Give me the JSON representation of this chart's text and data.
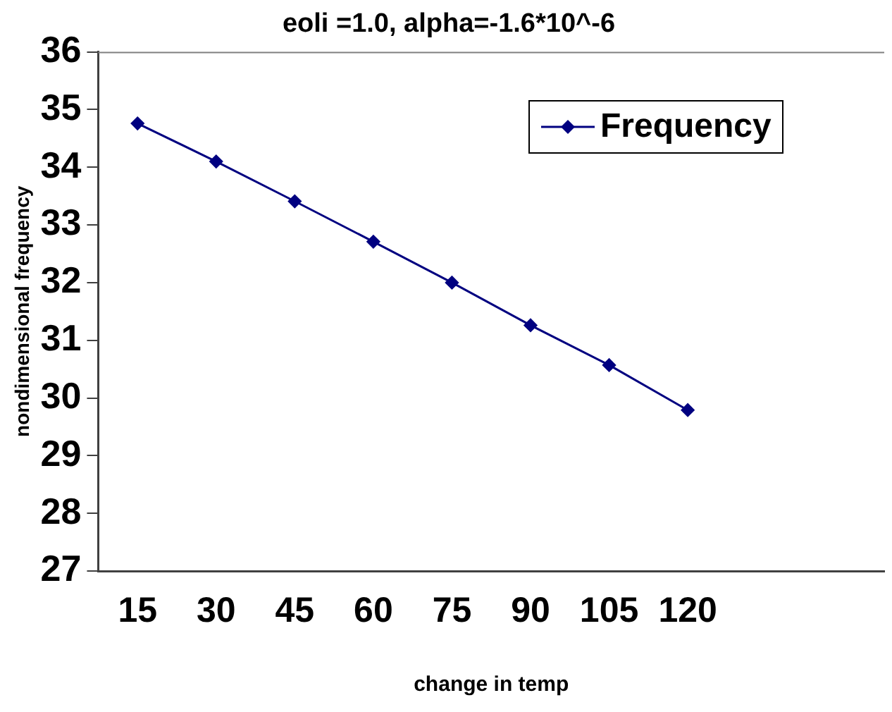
{
  "chart_data": {
    "type": "line",
    "title": "eoli =1.0, alpha=-1.6*10^-6",
    "xlabel": "change in temp",
    "ylabel": "nondimensional frequency",
    "categories": [
      "15",
      "30",
      "45",
      "60",
      "75",
      "90",
      "105",
      "120"
    ],
    "series": [
      {
        "name": "Frequency",
        "color": "#000080",
        "values": [
          34.76,
          34.1,
          33.41,
          32.71,
          32.0,
          31.26,
          30.57,
          29.79
        ]
      }
    ],
    "ylim": [
      27,
      36
    ],
    "yticks": [
      27,
      28,
      29,
      30,
      31,
      32,
      33,
      34,
      35,
      36
    ],
    "grid": false,
    "legend": "top right",
    "marker": "diamond",
    "line_style": "solid"
  }
}
